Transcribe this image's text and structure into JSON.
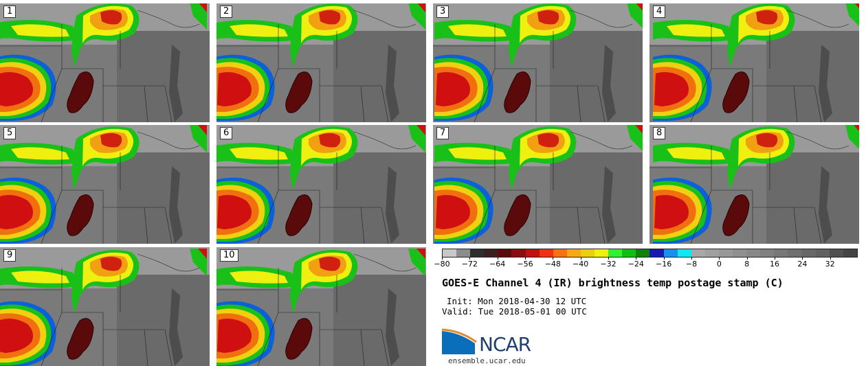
{
  "panels": [
    "1",
    "2",
    "3",
    "4",
    "5",
    "6",
    "7",
    "8",
    "9",
    "10"
  ],
  "colorbar": {
    "tick_labels": [
      "−80",
      "−72",
      "−64",
      "−56",
      "−48",
      "−40",
      "−32",
      "−24",
      "−16",
      "−8",
      "0",
      "8",
      "16",
      "24",
      "32"
    ],
    "range": [
      -80,
      40
    ],
    "step": 4,
    "colors": [
      "#c8c8c8",
      "#8c8c8c",
      "#2e2e2e",
      "#3a2020",
      "#5a0c0c",
      "#8a0e0e",
      "#c01010",
      "#f03010",
      "#f87010",
      "#f8a810",
      "#e8d010",
      "#f0f010",
      "#30f030",
      "#10c010",
      "#108010",
      "#1818b0",
      "#1890f0",
      "#10e8f0",
      "#a8a8a8",
      "#a0a0a0",
      "#989898",
      "#909090",
      "#888888",
      "#808080",
      "#787878",
      "#707070",
      "#686868",
      "#606060",
      "#505050",
      "#444444"
    ]
  },
  "title": "GOES-E Channel 4 (IR) brightness temp postage stamp (C)",
  "init": "Init: Mon 2018-04-30 12 UTC",
  "valid": "Valid: Tue 2018-05-01 00 UTC",
  "logo": {
    "text": "NCAR",
    "url_text": "ensemble.ucar.edu"
  }
}
